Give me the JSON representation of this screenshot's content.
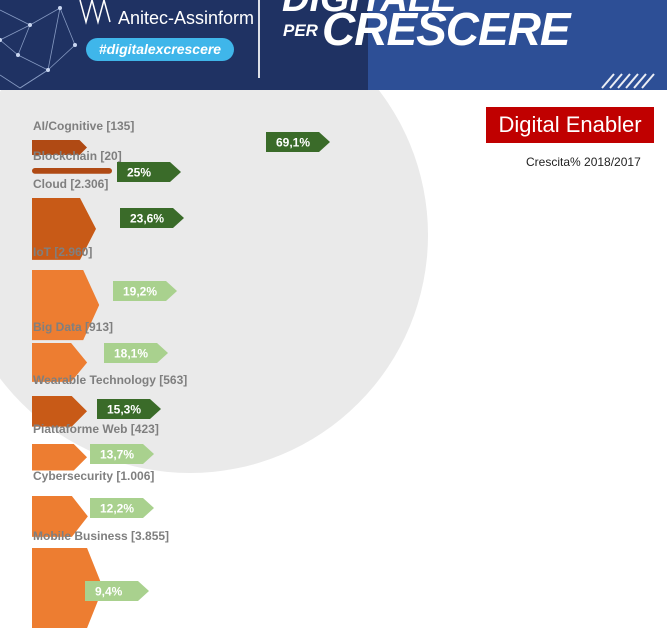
{
  "header": {
    "org_name": "Anitec-Assinform",
    "hashtag": "#digitalexcrescere",
    "title_line1": "DIGITALE",
    "title_line2": "PER",
    "title_line3": "CRESCERE"
  },
  "section_badge": "Digital Enabler",
  "colors": {
    "banner_dark": "#1f3263",
    "banner_light": "#2d4f96",
    "hashtag_bg": "#3fb6ea",
    "badge_red": "#c00000",
    "bar_brown": "#b04a14",
    "bar_dark_orange": "#c85a17",
    "bar_orange": "#ed7d31",
    "growth_dark_green": "#3a6b29",
    "growth_light_green": "#a9d18e",
    "label_gray": "#7f7f7f",
    "background_circle": "#eaeaea"
  },
  "chart_data": {
    "type": "bar",
    "subtitle": "Crescita% 2018/2017",
    "categories": [
      "AI/Cognitive [135]",
      "Blockchain [20]",
      "Cloud [2.306]",
      "IoT [2.960]",
      "Big Data [913]",
      "Wearable Technology [563]",
      "Piattaforme Web [423]",
      "Cybersecurity [1.006]",
      "Mobile Business [3.855]"
    ],
    "market_values": [
      135,
      20,
      2306,
      2960,
      913,
      563,
      423,
      1006,
      3855
    ],
    "growth_labels": [
      "69,1%",
      "25%",
      "23,6%",
      "19,2%",
      "18,1%",
      "15,3%",
      "13,7%",
      "12,2%",
      "9,4%"
    ],
    "growth_values": [
      69.1,
      25,
      23.6,
      19.2,
      18.1,
      15.3,
      13.7,
      12.2,
      9.4
    ],
    "bar_colors": [
      "#b04a14",
      "#b04a14",
      "#c85a17",
      "#ed7d31",
      "#ed7d31",
      "#c85a17",
      "#ed7d31",
      "#ed7d31",
      "#ed7d31"
    ],
    "growth_colors": [
      "#3a6b29",
      "#3a6b29",
      "#3a6b29",
      "#a9d18e",
      "#a9d18e",
      "#3a6b29",
      "#a9d18e",
      "#a9d18e",
      "#a9d18e"
    ]
  }
}
